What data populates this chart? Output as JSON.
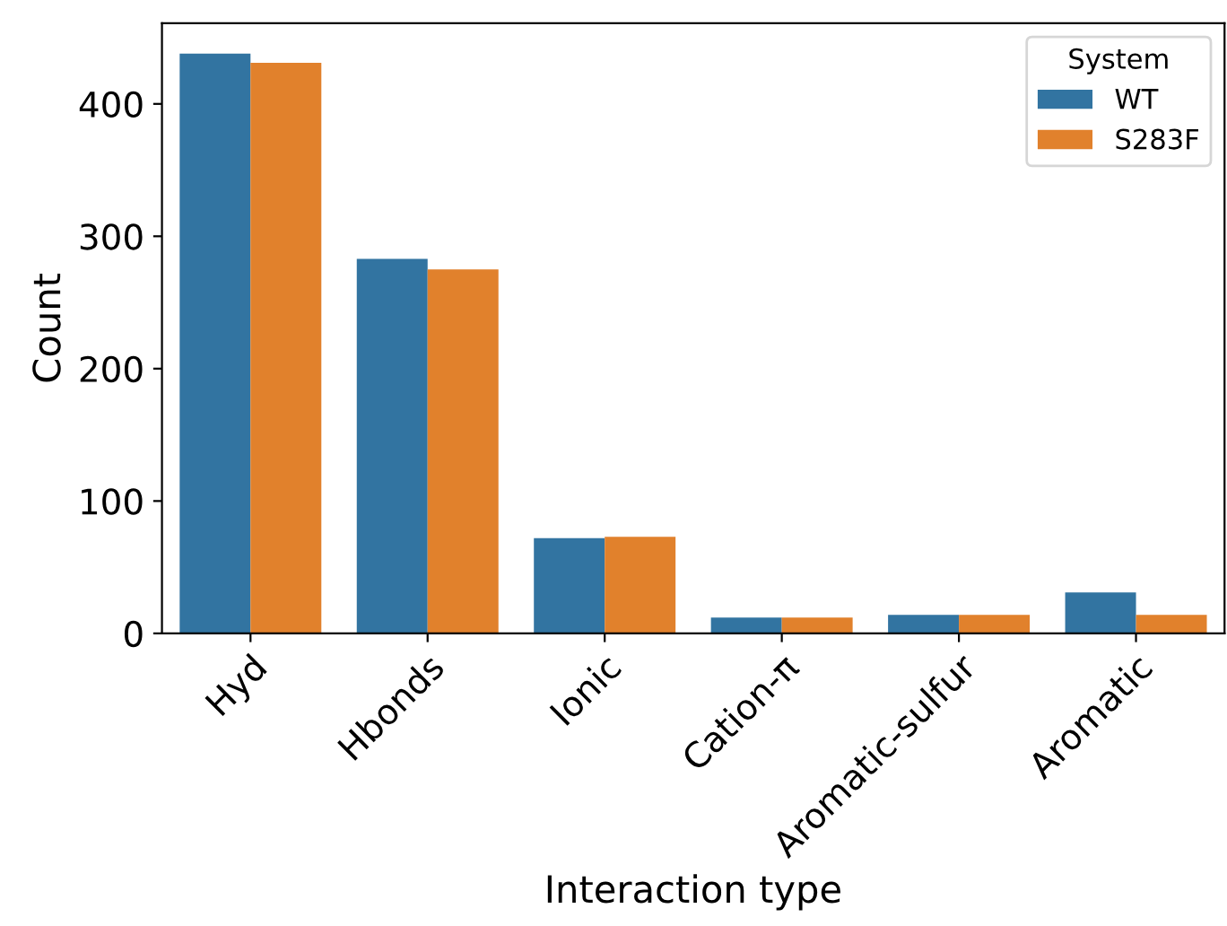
{
  "chart_data": {
    "type": "bar",
    "xlabel": "Interaction type",
    "ylabel": "Count",
    "legend_title": "System",
    "legend": "top right",
    "categories": [
      "Hyd",
      "Hbonds",
      "Ionic",
      "Cation-π",
      "Aromatic-sulfur",
      "Aromatic"
    ],
    "series": [
      {
        "name": "WT",
        "color": "#3274a1",
        "values": [
          438,
          283,
          72,
          12,
          14,
          31
        ]
      },
      {
        "name": "S283F",
        "color": "#e1812c",
        "values": [
          431,
          275,
          73,
          12,
          14,
          14
        ]
      }
    ],
    "ylim": [
      0,
      461
    ],
    "yticks": [
      0,
      100,
      200,
      300,
      400
    ],
    "grid": false
  }
}
